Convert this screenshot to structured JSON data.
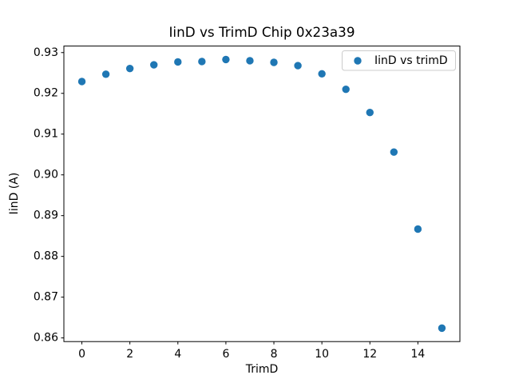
{
  "figure": {
    "background": "#ffffff"
  },
  "chart_data": {
    "type": "scatter",
    "title": "IinD vs TrimD Chip 0x23a39",
    "xlabel": "TrimD",
    "ylabel": "IinD (A)",
    "legend": {
      "label": "IinD vs trimD",
      "position": "upper right"
    },
    "x": [
      0,
      1,
      2,
      3,
      4,
      5,
      6,
      7,
      8,
      9,
      10,
      11,
      12,
      13,
      14,
      15
    ],
    "y": [
      0.9229,
      0.9247,
      0.9261,
      0.927,
      0.9277,
      0.9278,
      0.9283,
      0.928,
      0.9276,
      0.9268,
      0.9248,
      0.921,
      0.9153,
      0.9056,
      0.8867,
      0.8624
    ],
    "xlim": [
      -0.75,
      15.75
    ],
    "ylim": [
      0.8591,
      0.9316
    ],
    "xticks": [
      0,
      2,
      4,
      6,
      8,
      10,
      12,
      14
    ],
    "yticks": [
      0.86,
      0.87,
      0.88,
      0.89,
      0.9,
      0.91,
      0.92,
      0.93
    ],
    "grid": false,
    "marker_color": "#1f77b4",
    "marker_radius": 4.7,
    "spine_color": "#000000",
    "legend_border_color": "#cccccc"
  }
}
